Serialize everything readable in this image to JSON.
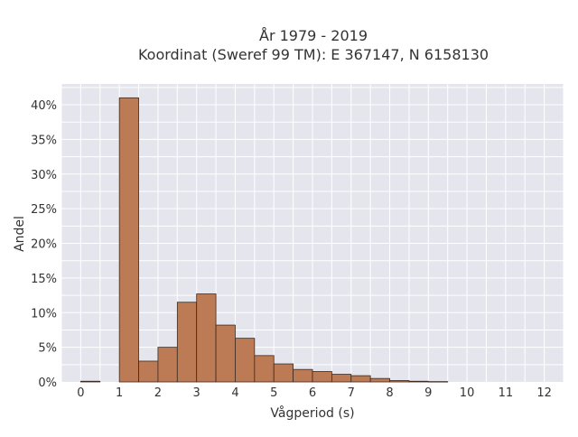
{
  "chart_data": {
    "type": "bar",
    "title_line1": "År 1979 - 2019",
    "title_line2": "Koordinat (Sweref 99 TM): E 367147, N 6158130",
    "xlabel": "Vågperiod (s)",
    "ylabel": "Andel",
    "xlim": [
      -0.5,
      12.5
    ],
    "ylim": [
      0,
      43
    ],
    "x_ticks": [
      "0",
      "1",
      "2",
      "3",
      "4",
      "5",
      "6",
      "7",
      "8",
      "9",
      "10",
      "11",
      "12"
    ],
    "y_ticks": [
      "0%",
      "5%",
      "10%",
      "15%",
      "20%",
      "25%",
      "30%",
      "35%",
      "40%"
    ],
    "bin_width": 0.5,
    "bins": [
      {
        "start": 0.0,
        "value": 0.1
      },
      {
        "start": 0.5,
        "value": 0.0
      },
      {
        "start": 1.0,
        "value": 41.0
      },
      {
        "start": 1.5,
        "value": 3.0
      },
      {
        "start": 2.0,
        "value": 5.0
      },
      {
        "start": 2.5,
        "value": 11.5
      },
      {
        "start": 3.0,
        "value": 12.7
      },
      {
        "start": 3.5,
        "value": 8.2
      },
      {
        "start": 4.0,
        "value": 6.3
      },
      {
        "start": 4.5,
        "value": 3.8
      },
      {
        "start": 5.0,
        "value": 2.6
      },
      {
        "start": 5.5,
        "value": 1.8
      },
      {
        "start": 6.0,
        "value": 1.5
      },
      {
        "start": 6.5,
        "value": 1.1
      },
      {
        "start": 7.0,
        "value": 0.9
      },
      {
        "start": 7.5,
        "value": 0.5
      },
      {
        "start": 8.0,
        "value": 0.2
      },
      {
        "start": 8.5,
        "value": 0.1
      },
      {
        "start": 9.0,
        "value": 0.05
      }
    ],
    "grid": true,
    "colors": {
      "bar_fill": "#bd7b55",
      "bar_stroke": "#3a2a20",
      "plot_bg": "#e5e5ee",
      "grid": "#ffffff"
    }
  }
}
